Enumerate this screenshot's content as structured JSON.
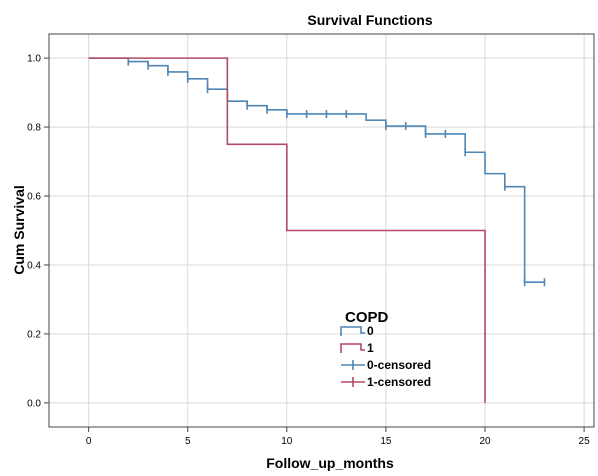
{
  "chart_data": {
    "type": "line",
    "title": "Survival Functions",
    "xlabel": "Follow_up_months",
    "ylabel": "Cum Survival",
    "xlim": [
      -2,
      25.5
    ],
    "ylim": [
      -0.07,
      1.07
    ],
    "xticks": [
      0,
      5,
      10,
      15,
      20,
      25
    ],
    "yticks": [
      0.0,
      0.2,
      0.4,
      0.6,
      0.8,
      1.0
    ],
    "xtick_labels": [
      "0",
      "5",
      "10",
      "15",
      "20",
      "25"
    ],
    "ytick_labels": [
      "0.0",
      "0.2",
      "0.4",
      "0.6",
      "0.8",
      "1.0"
    ],
    "grid": true,
    "legend": {
      "title": "COPD",
      "position": "center-bottom",
      "entries": [
        "0",
        "1",
        "0-censored",
        "1-censored"
      ]
    },
    "series": [
      {
        "name": "0",
        "color": "#4f86b5",
        "step_points": [
          [
            0,
            1.0
          ],
          [
            2,
            0.99
          ],
          [
            3,
            0.978
          ],
          [
            4,
            0.96
          ],
          [
            5,
            0.94
          ],
          [
            6,
            0.91
          ],
          [
            7,
            0.875
          ],
          [
            8,
            0.862
          ],
          [
            9,
            0.85
          ],
          [
            10,
            0.838
          ],
          [
            14,
            0.82
          ],
          [
            15,
            0.803
          ],
          [
            17,
            0.78
          ],
          [
            19,
            0.727
          ],
          [
            20,
            0.665
          ],
          [
            21,
            0.627
          ],
          [
            22,
            0.35
          ],
          [
            23,
            0.35
          ]
        ],
        "censored": [
          [
            2,
            0.99
          ],
          [
            3,
            0.978
          ],
          [
            4,
            0.96
          ],
          [
            5,
            0.94
          ],
          [
            6,
            0.91
          ],
          [
            8,
            0.862
          ],
          [
            9,
            0.85
          ],
          [
            10,
            0.838
          ],
          [
            11,
            0.838
          ],
          [
            12,
            0.838
          ],
          [
            13,
            0.838
          ],
          [
            15,
            0.803
          ],
          [
            16,
            0.803
          ],
          [
            17,
            0.78
          ],
          [
            18,
            0.78
          ],
          [
            19,
            0.727
          ],
          [
            21,
            0.627
          ],
          [
            22,
            0.35
          ],
          [
            23,
            0.35
          ]
        ]
      },
      {
        "name": "1",
        "color": "#b44a63",
        "step_points": [
          [
            0,
            1.0
          ],
          [
            7,
            0.75
          ],
          [
            10,
            0.5
          ],
          [
            20,
            0.0
          ]
        ],
        "censored": []
      }
    ]
  }
}
